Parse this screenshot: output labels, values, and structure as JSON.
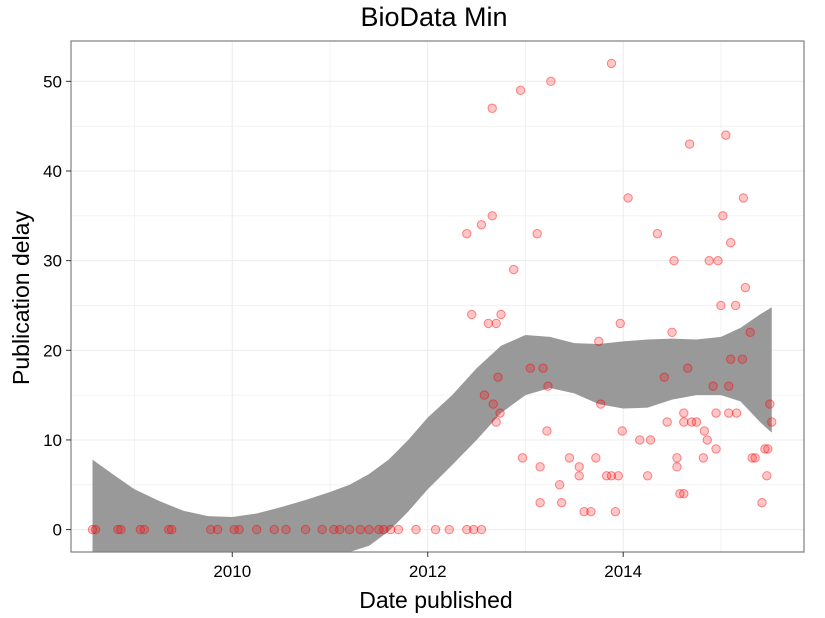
{
  "chart_data": {
    "type": "scatter",
    "title": "BioData Min",
    "xlabel": "Date published",
    "ylabel": "Publication delay",
    "x_unit": "year",
    "xlim": [
      2008.35,
      2015.85
    ],
    "ylim": [
      -2.5,
      54.5
    ],
    "x_ticks": [
      2010,
      2012,
      2014
    ],
    "x_tick_labels": [
      "2010",
      "2012",
      "2014"
    ],
    "y_ticks": [
      0,
      10,
      20,
      30,
      40,
      50
    ],
    "y_tick_labels": [
      "0",
      "10",
      "20",
      "30",
      "40",
      "50"
    ],
    "grid": true,
    "legend": "none",
    "colors": {
      "points": "#ff0000",
      "ribbon": "#999999",
      "grid": "#ebebeb",
      "panel_border": "#7f7f7f"
    },
    "points": [
      {
        "x": 2008.57,
        "y": 0
      },
      {
        "x": 2008.6,
        "y": 0
      },
      {
        "x": 2008.83,
        "y": 0
      },
      {
        "x": 2008.86,
        "y": 0
      },
      {
        "x": 2009.06,
        "y": 0
      },
      {
        "x": 2009.1,
        "y": 0
      },
      {
        "x": 2009.35,
        "y": 0
      },
      {
        "x": 2009.38,
        "y": 0
      },
      {
        "x": 2009.78,
        "y": 0
      },
      {
        "x": 2009.85,
        "y": 0
      },
      {
        "x": 2010.02,
        "y": 0
      },
      {
        "x": 2010.07,
        "y": 0
      },
      {
        "x": 2010.25,
        "y": 0
      },
      {
        "x": 2010.43,
        "y": 0
      },
      {
        "x": 2010.55,
        "y": 0
      },
      {
        "x": 2010.75,
        "y": 0
      },
      {
        "x": 2010.92,
        "y": 0
      },
      {
        "x": 2011.04,
        "y": 0
      },
      {
        "x": 2011.1,
        "y": 0
      },
      {
        "x": 2011.2,
        "y": 0
      },
      {
        "x": 2011.31,
        "y": 0
      },
      {
        "x": 2011.4,
        "y": 0
      },
      {
        "x": 2011.5,
        "y": 0
      },
      {
        "x": 2011.55,
        "y": 0
      },
      {
        "x": 2011.62,
        "y": 0
      },
      {
        "x": 2011.7,
        "y": 0
      },
      {
        "x": 2011.88,
        "y": 0
      },
      {
        "x": 2012.08,
        "y": 0
      },
      {
        "x": 2012.22,
        "y": 0
      },
      {
        "x": 2012.4,
        "y": 0
      },
      {
        "x": 2012.47,
        "y": 0
      },
      {
        "x": 2012.55,
        "y": 0
      },
      {
        "x": 2012.4,
        "y": 33
      },
      {
        "x": 2012.45,
        "y": 24
      },
      {
        "x": 2012.55,
        "y": 34
      },
      {
        "x": 2012.58,
        "y": 15
      },
      {
        "x": 2012.62,
        "y": 23
      },
      {
        "x": 2012.66,
        "y": 35
      },
      {
        "x": 2012.66,
        "y": 47
      },
      {
        "x": 2012.7,
        "y": 23
      },
      {
        "x": 2012.75,
        "y": 24
      },
      {
        "x": 2012.72,
        "y": 17
      },
      {
        "x": 2012.7,
        "y": 12
      },
      {
        "x": 2012.67,
        "y": 14
      },
      {
        "x": 2012.74,
        "y": 13
      },
      {
        "x": 2012.88,
        "y": 29
      },
      {
        "x": 2012.95,
        "y": 49
      },
      {
        "x": 2012.97,
        "y": 8
      },
      {
        "x": 2013.05,
        "y": 18
      },
      {
        "x": 2013.12,
        "y": 33
      },
      {
        "x": 2013.15,
        "y": 7
      },
      {
        "x": 2013.15,
        "y": 3
      },
      {
        "x": 2013.18,
        "y": 18
      },
      {
        "x": 2013.23,
        "y": 16
      },
      {
        "x": 2013.22,
        "y": 11
      },
      {
        "x": 2013.26,
        "y": 50
      },
      {
        "x": 2013.35,
        "y": 5
      },
      {
        "x": 2013.37,
        "y": 3
      },
      {
        "x": 2013.45,
        "y": 8
      },
      {
        "x": 2013.55,
        "y": 7
      },
      {
        "x": 2013.55,
        "y": 6
      },
      {
        "x": 2013.6,
        "y": 2
      },
      {
        "x": 2013.67,
        "y": 2
      },
      {
        "x": 2013.72,
        "y": 8
      },
      {
        "x": 2013.75,
        "y": 21
      },
      {
        "x": 2013.77,
        "y": 14
      },
      {
        "x": 2013.83,
        "y": 6
      },
      {
        "x": 2013.88,
        "y": 52
      },
      {
        "x": 2013.88,
        "y": 6
      },
      {
        "x": 2013.92,
        "y": 2
      },
      {
        "x": 2013.95,
        "y": 6
      },
      {
        "x": 2013.97,
        "y": 23
      },
      {
        "x": 2013.99,
        "y": 11
      },
      {
        "x": 2014.05,
        "y": 37
      },
      {
        "x": 2014.17,
        "y": 10
      },
      {
        "x": 2014.25,
        "y": 6
      },
      {
        "x": 2014.28,
        "y": 10
      },
      {
        "x": 2014.35,
        "y": 33
      },
      {
        "x": 2014.42,
        "y": 17
      },
      {
        "x": 2014.45,
        "y": 12
      },
      {
        "x": 2014.5,
        "y": 22
      },
      {
        "x": 2014.52,
        "y": 30
      },
      {
        "x": 2014.55,
        "y": 8
      },
      {
        "x": 2014.55,
        "y": 7
      },
      {
        "x": 2014.58,
        "y": 4
      },
      {
        "x": 2014.62,
        "y": 4
      },
      {
        "x": 2014.62,
        "y": 12
      },
      {
        "x": 2014.62,
        "y": 13
      },
      {
        "x": 2014.66,
        "y": 18
      },
      {
        "x": 2014.68,
        "y": 43
      },
      {
        "x": 2014.7,
        "y": 12
      },
      {
        "x": 2014.75,
        "y": 12
      },
      {
        "x": 2014.82,
        "y": 8
      },
      {
        "x": 2014.83,
        "y": 11
      },
      {
        "x": 2014.86,
        "y": 10
      },
      {
        "x": 2014.88,
        "y": 30
      },
      {
        "x": 2014.92,
        "y": 16
      },
      {
        "x": 2014.95,
        "y": 9
      },
      {
        "x": 2014.95,
        "y": 13
      },
      {
        "x": 2014.97,
        "y": 30
      },
      {
        "x": 2015.0,
        "y": 25
      },
      {
        "x": 2015.02,
        "y": 35
      },
      {
        "x": 2015.05,
        "y": 44
      },
      {
        "x": 2015.08,
        "y": 13
      },
      {
        "x": 2015.08,
        "y": 16
      },
      {
        "x": 2015.1,
        "y": 19
      },
      {
        "x": 2015.1,
        "y": 32
      },
      {
        "x": 2015.15,
        "y": 25
      },
      {
        "x": 2015.16,
        "y": 13
      },
      {
        "x": 2015.22,
        "y": 19
      },
      {
        "x": 2015.23,
        "y": 37
      },
      {
        "x": 2015.25,
        "y": 27
      },
      {
        "x": 2015.3,
        "y": 22
      },
      {
        "x": 2015.32,
        "y": 8
      },
      {
        "x": 2015.35,
        "y": 8
      },
      {
        "x": 2015.42,
        "y": 3
      },
      {
        "x": 2015.45,
        "y": 9
      },
      {
        "x": 2015.47,
        "y": 6
      },
      {
        "x": 2015.48,
        "y": 9
      },
      {
        "x": 2015.5,
        "y": 14
      },
      {
        "x": 2015.52,
        "y": 12
      }
    ],
    "smooth_band": [
      {
        "x": 2008.57,
        "lower": -2.5,
        "upper": 7.8
      },
      {
        "x": 2008.8,
        "lower": -2.5,
        "upper": 6.0
      },
      {
        "x": 2009.0,
        "lower": -2.5,
        "upper": 4.5
      },
      {
        "x": 2009.25,
        "lower": -2.5,
        "upper": 3.2
      },
      {
        "x": 2009.5,
        "lower": -2.5,
        "upper": 2.1
      },
      {
        "x": 2009.75,
        "lower": -2.5,
        "upper": 1.5
      },
      {
        "x": 2010.0,
        "lower": -2.5,
        "upper": 1.4
      },
      {
        "x": 2010.25,
        "lower": -2.5,
        "upper": 1.8
      },
      {
        "x": 2010.5,
        "lower": -2.5,
        "upper": 2.5
      },
      {
        "x": 2010.75,
        "lower": -2.5,
        "upper": 3.3
      },
      {
        "x": 2011.0,
        "lower": -2.5,
        "upper": 4.2
      },
      {
        "x": 2011.2,
        "lower": -2.5,
        "upper": 5.0
      },
      {
        "x": 2011.4,
        "lower": -1.8,
        "upper": 6.2
      },
      {
        "x": 2011.6,
        "lower": -0.2,
        "upper": 7.8
      },
      {
        "x": 2011.8,
        "lower": 2.0,
        "upper": 10.0
      },
      {
        "x": 2012.0,
        "lower": 4.5,
        "upper": 12.5
      },
      {
        "x": 2012.25,
        "lower": 7.2,
        "upper": 15.0
      },
      {
        "x": 2012.5,
        "lower": 10.0,
        "upper": 18.0
      },
      {
        "x": 2012.75,
        "lower": 13.0,
        "upper": 20.5
      },
      {
        "x": 2013.0,
        "lower": 15.0,
        "upper": 21.7
      },
      {
        "x": 2013.25,
        "lower": 15.8,
        "upper": 21.5
      },
      {
        "x": 2013.5,
        "lower": 15.2,
        "upper": 20.8
      },
      {
        "x": 2013.75,
        "lower": 14.0,
        "upper": 20.7
      },
      {
        "x": 2014.0,
        "lower": 13.5,
        "upper": 21.0
      },
      {
        "x": 2014.25,
        "lower": 13.6,
        "upper": 21.2
      },
      {
        "x": 2014.5,
        "lower": 14.5,
        "upper": 21.3
      },
      {
        "x": 2014.75,
        "lower": 15.0,
        "upper": 21.2
      },
      {
        "x": 2015.0,
        "lower": 15.0,
        "upper": 21.5
      },
      {
        "x": 2015.2,
        "lower": 14.3,
        "upper": 22.5
      },
      {
        "x": 2015.4,
        "lower": 12.0,
        "upper": 24.0
      },
      {
        "x": 2015.52,
        "lower": 10.8,
        "upper": 24.8
      }
    ]
  }
}
